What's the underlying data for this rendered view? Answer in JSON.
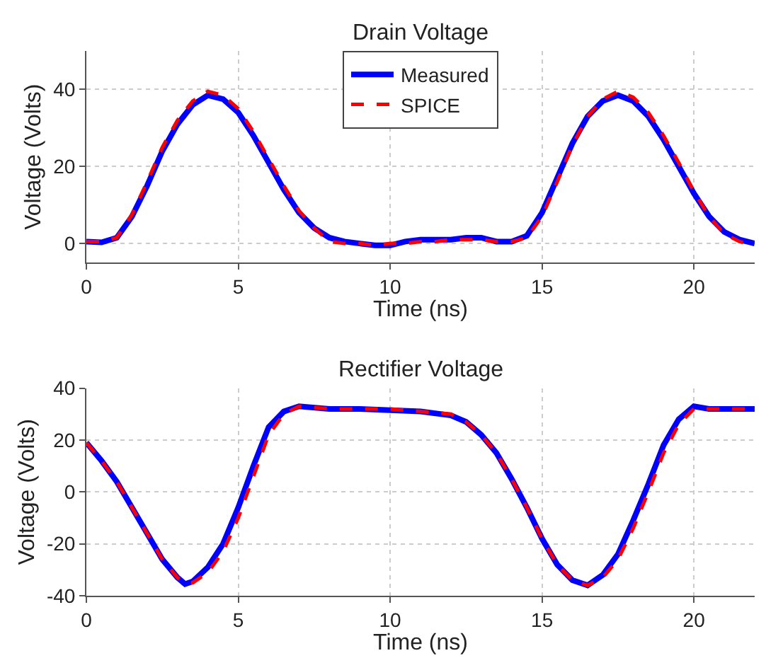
{
  "chart_data": [
    {
      "type": "line",
      "title": "Drain Voltage",
      "xlabel": "Time (ns)",
      "ylabel": "Voltage (Volts)",
      "xlim": [
        0,
        22
      ],
      "xticks": [
        0,
        5,
        10,
        15,
        20
      ],
      "ylim": [
        -5,
        50
      ],
      "yticks": [
        0,
        20,
        40
      ],
      "grid": true,
      "legend": "top",
      "series": [
        {
          "name": "Measured",
          "color": "#0000ff",
          "line_style": "solid",
          "x": [
            0,
            0.5,
            1,
            1.5,
            2,
            2.5,
            3,
            3.5,
            4,
            4.5,
            5,
            5.5,
            6,
            6.5,
            7,
            7.5,
            8,
            8.5,
            9,
            9.5,
            10,
            10.5,
            11,
            11.5,
            12,
            12.5,
            13,
            13.5,
            14,
            14.5,
            15,
            15.5,
            16,
            16.5,
            17,
            17.5,
            18,
            18.5,
            19,
            19.5,
            20,
            20.5,
            21,
            21.5,
            22
          ],
          "values": [
            0.5,
            0.3,
            1.5,
            7,
            15,
            24,
            31,
            36,
            38.5,
            37.5,
            34,
            28,
            21,
            14,
            8,
            4,
            1.5,
            0.5,
            0,
            -0.5,
            -0.5,
            0.5,
            1,
            1,
            1,
            1.5,
            1.5,
            0.5,
            0.5,
            2,
            8,
            17,
            26,
            33,
            37,
            38.5,
            37,
            33,
            27,
            20,
            13,
            7,
            3,
            1,
            0
          ]
        },
        {
          "name": "SPICE",
          "color": "#ff0000",
          "line_style": "dashed",
          "x": [
            0,
            0.5,
            1,
            1.5,
            2,
            2.5,
            3,
            3.5,
            4,
            4.5,
            5,
            5.5,
            6,
            6.5,
            7,
            7.5,
            8,
            8.5,
            9,
            9.5,
            10,
            10.5,
            11,
            11.5,
            12,
            12.5,
            13,
            13.5,
            14,
            14.5,
            15,
            15.5,
            16,
            16.5,
            17,
            17.5,
            18,
            18.5,
            19,
            19.5,
            20,
            20.5,
            21,
            21.5,
            22
          ],
          "values": [
            0.5,
            0.5,
            1.5,
            7.5,
            16,
            25,
            32,
            37,
            39.5,
            38.5,
            35,
            29,
            22,
            15,
            8.5,
            4,
            0.5,
            0,
            0,
            -0.5,
            0,
            0,
            0.5,
            0.5,
            1,
            1,
            1,
            0.5,
            0.5,
            1.5,
            7,
            16,
            25.5,
            33,
            37.5,
            39.5,
            38,
            34,
            28,
            21,
            13.5,
            7,
            2.5,
            0.5,
            -0.5
          ]
        }
      ]
    },
    {
      "type": "line",
      "title": "Rectifier Voltage",
      "xlabel": "Time (ns)",
      "ylabel": "Voltage (Volts)",
      "xlim": [
        0,
        22
      ],
      "xticks": [
        0,
        5,
        10,
        15,
        20
      ],
      "ylim": [
        -40,
        40
      ],
      "yticks": [
        -40,
        -20,
        0,
        20,
        40
      ],
      "grid": true,
      "series": [
        {
          "color": "#0000ff",
          "line_style": "solid",
          "x": [
            0,
            0.5,
            1,
            1.5,
            2,
            2.5,
            3,
            3.25,
            3.5,
            4,
            4.5,
            5,
            5.5,
            6,
            6.5,
            7,
            8,
            9,
            10,
            11,
            12,
            12.5,
            13,
            13.5,
            14,
            14.5,
            15,
            15.5,
            16,
            16.5,
            17,
            17.5,
            18,
            18.5,
            19,
            19.5,
            20,
            20.5,
            21,
            22
          ],
          "values": [
            19,
            12,
            4,
            -6,
            -16,
            -26,
            -33,
            -35.5,
            -34.5,
            -29,
            -20,
            -6,
            10,
            25,
            31,
            33,
            32,
            32,
            31.5,
            31,
            29.5,
            27,
            22,
            15,
            5,
            -6,
            -18,
            -28,
            -34,
            -36,
            -32,
            -24,
            -11,
            3,
            18,
            28,
            33,
            32,
            32,
            32
          ]
        },
        {
          "color": "#ff0000",
          "line_style": "dashed",
          "x": [
            0,
            0.5,
            1,
            1.5,
            2,
            2.5,
            3,
            3.25,
            3.5,
            4,
            4.5,
            5,
            5.5,
            6,
            6.5,
            7,
            8,
            9,
            10,
            11,
            12,
            12.5,
            13,
            13.5,
            14,
            14.5,
            15,
            15.5,
            16,
            16.5,
            17,
            17.5,
            18,
            18.5,
            19,
            19.5,
            20,
            20.5,
            21,
            22
          ],
          "values": [
            19,
            12,
            4,
            -6,
            -16,
            -26,
            -33,
            -35,
            -35,
            -31,
            -23,
            -10,
            6,
            22,
            30,
            33,
            32,
            32,
            32,
            31,
            30,
            27,
            22,
            15,
            5,
            -6,
            -18,
            -28,
            -34,
            -36,
            -33,
            -26,
            -14,
            0,
            15,
            26,
            32,
            32,
            32,
            32
          ]
        }
      ]
    }
  ]
}
